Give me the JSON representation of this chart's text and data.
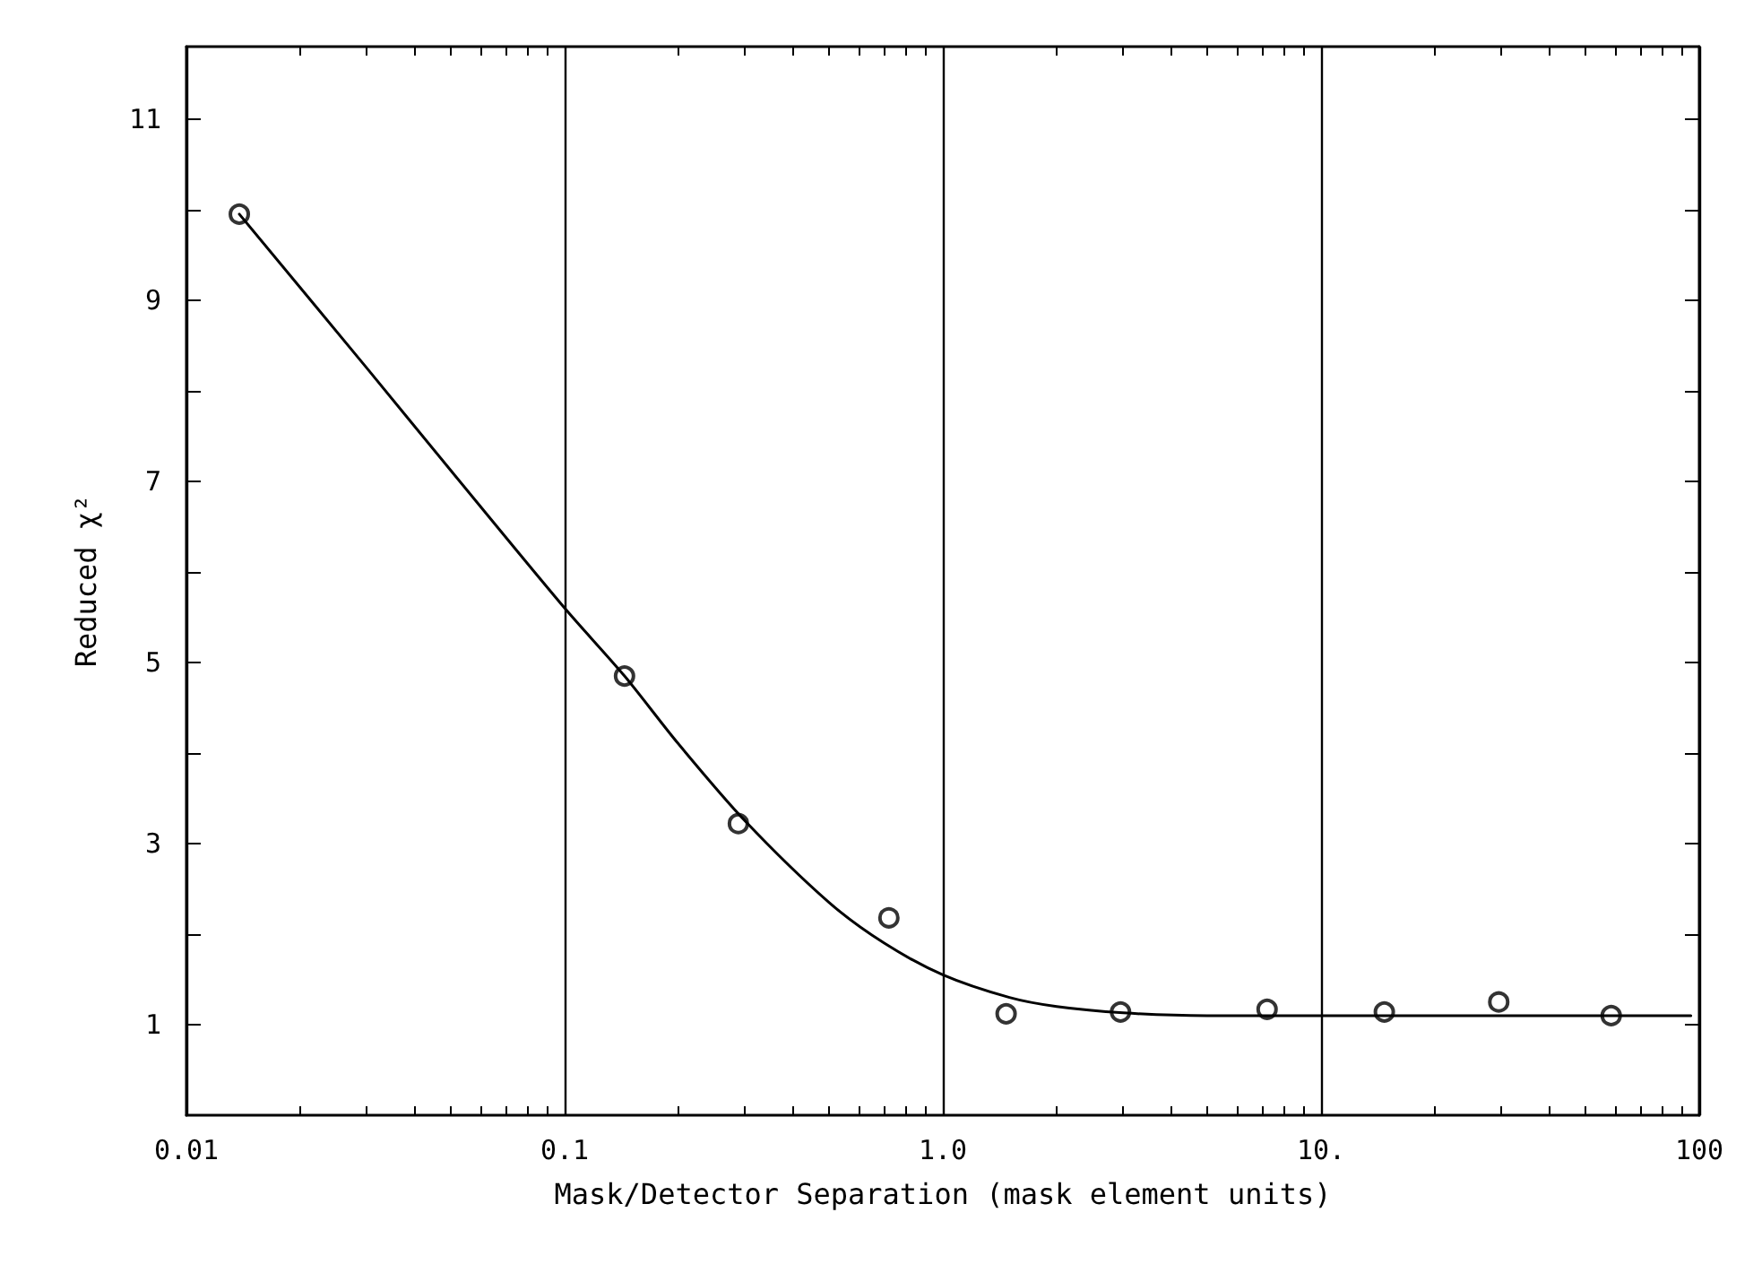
{
  "chart_data": {
    "type": "scatter",
    "xlabel": "Mask/Detector Separation (mask element units)",
    "ylabel": "Reduced χ²",
    "log": "x",
    "grid": "x",
    "xlim": [
      0.01,
      100
    ],
    "xticks": [
      {
        "value": 0.01,
        "label": "0.01"
      },
      {
        "value": 0.1,
        "label": "0.1"
      },
      {
        "value": 1,
        "label": "1.0"
      },
      {
        "value": 10,
        "label": "10."
      },
      {
        "value": 100,
        "label": "100"
      }
    ],
    "ylim": [
      0,
      11.8
    ],
    "yticks": [
      1,
      {
        "value": 2,
        "label": null
      },
      3,
      {
        "value": 4,
        "label": null
      },
      5,
      {
        "value": 6,
        "label": null
      },
      7,
      {
        "value": 8,
        "label": null
      },
      9,
      {
        "value": 10,
        "label": null
      },
      11
    ],
    "series": [
      {
        "color": "#000000",
        "marker": "circle",
        "x": [
          0.0138,
          0.144,
          0.288,
          0.72,
          1.47,
          2.95,
          7.2,
          14.7,
          29.5,
          58.5
        ],
        "values": [
          9.95,
          4.85,
          3.22,
          2.18,
          1.12,
          1.14,
          1.17,
          1.14,
          1.25,
          1.1
        ]
      },
      {
        "type": "line",
        "color": "#000000",
        "marker": "none",
        "line_style": "solid",
        "x": [
          0.0138,
          0.03,
          0.05,
          0.1,
          0.144,
          0.2,
          0.3,
          0.5,
          0.7,
          1,
          1.5,
          2,
          3,
          5,
          10,
          95
        ],
        "values": [
          9.95,
          8.25,
          7.12,
          5.6,
          4.85,
          4.1,
          3.25,
          2.35,
          1.9,
          1.55,
          1.3,
          1.2,
          1.13,
          1.1,
          1.1,
          1.1
        ]
      }
    ]
  }
}
